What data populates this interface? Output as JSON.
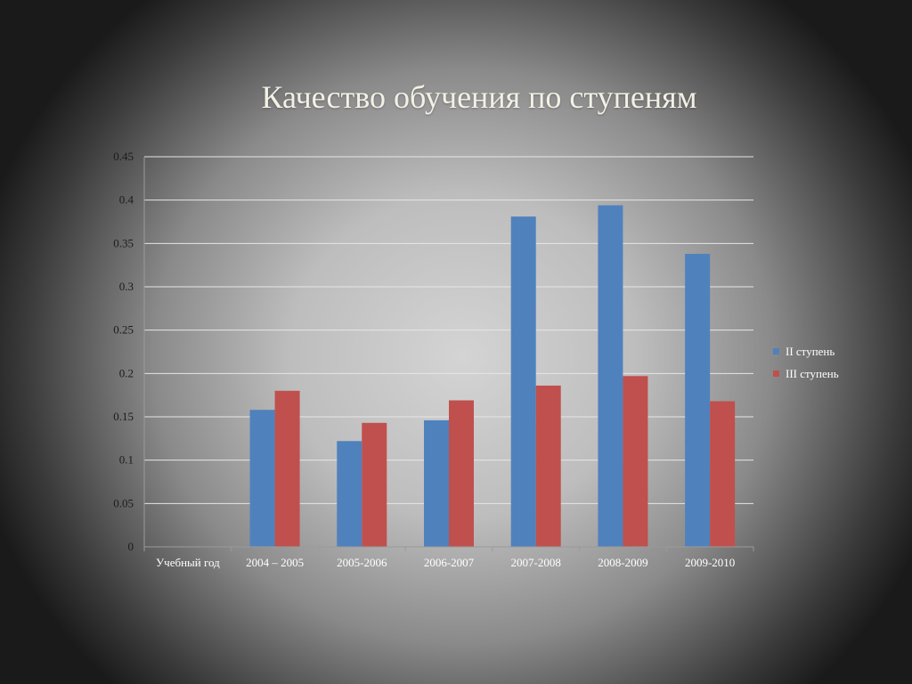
{
  "slide": {
    "title": "Качество обучения по ступеням"
  },
  "chart_data": {
    "type": "bar",
    "title": "Качество обучения по ступеням",
    "categories": [
      "Учебный год",
      "2004 – 2005",
      "2005-2006",
      "2006-2007",
      "2007-2008",
      "2008-2009",
      "2009-2010"
    ],
    "series": [
      {
        "name": "II ступень",
        "color": "#4f81bd",
        "values": [
          null,
          0.158,
          0.122,
          0.146,
          0.381,
          0.394,
          0.338
        ]
      },
      {
        "name": "III ступень",
        "color": "#c0504d",
        "values": [
          null,
          0.18,
          0.143,
          0.169,
          0.186,
          0.197,
          0.168
        ]
      }
    ],
    "yticks": [
      "0",
      "0.05",
      "0.1",
      "0.15",
      "0.2",
      "0.25",
      "0.3",
      "0.35",
      "0.4",
      "0.45"
    ],
    "ylim": [
      0,
      0.45
    ],
    "grid": true,
    "legend_position": "right"
  }
}
